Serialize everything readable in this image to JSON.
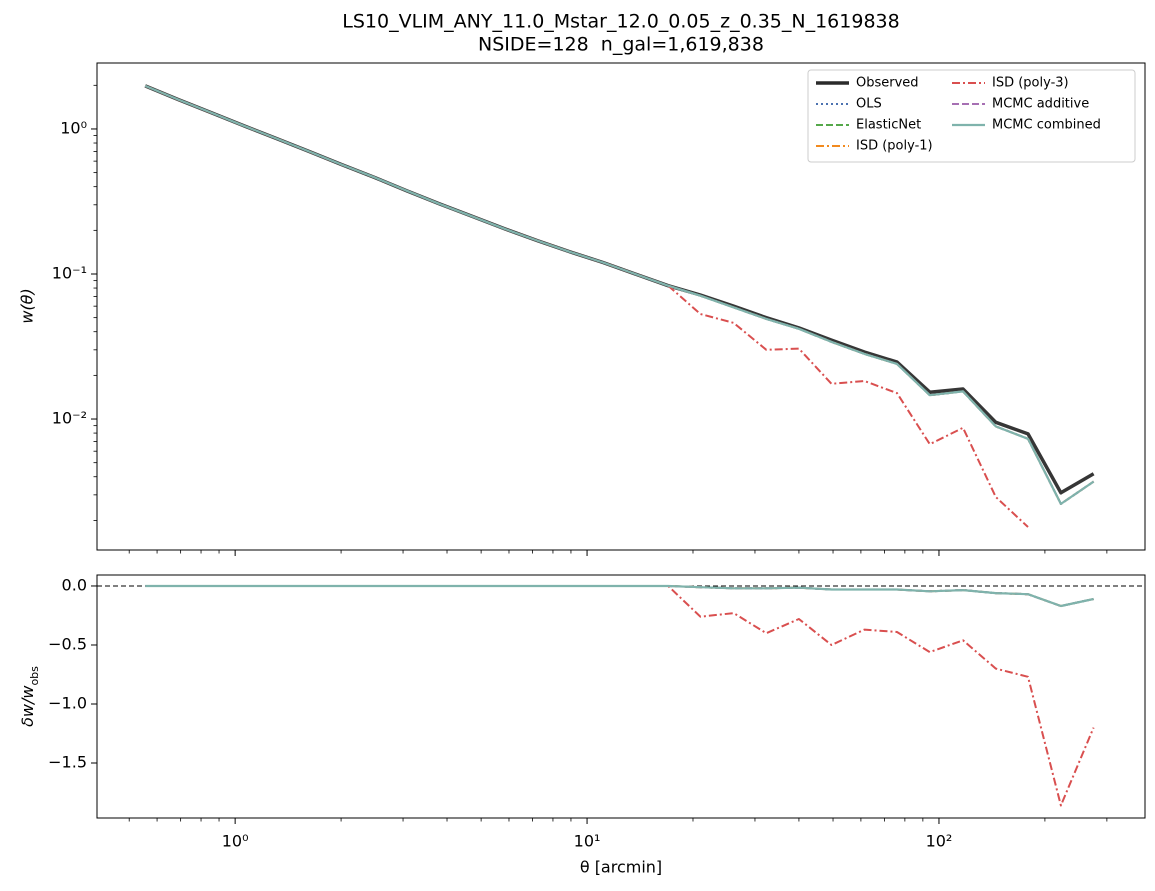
{
  "chart_data": [
    {
      "type": "line",
      "title": "LS10_VLIM_ANY_11.0_Mstar_12.0_0.05_z_0.35_N_1619838",
      "subtitle": "NSIDE=128  n_gal=1,619,838",
      "ylabel": "w(θ)",
      "log_x": true,
      "log_y": true,
      "xlim": [
        0.405,
        385
      ],
      "ylim": [
        0.00125,
        2.85
      ],
      "yticks": [
        {
          "value": 0.01,
          "label": "10⁻²"
        },
        {
          "value": 0.1,
          "label": "10⁻¹"
        },
        {
          "value": 1,
          "label": "10⁰"
        }
      ],
      "legend": "upper right",
      "legend_columns": 2,
      "x": [
        0.555,
        0.687,
        0.851,
        1.05,
        1.31,
        1.62,
        2.0,
        2.48,
        3.07,
        3.8,
        4.71,
        5.83,
        7.22,
        8.95,
        11.1,
        13.7,
        17.0,
        21.0,
        26.1,
        32.3,
        40.0,
        49.5,
        61.4,
        76.0,
        94.2,
        117,
        145,
        179,
        222,
        275
      ],
      "series": [
        {
          "name": "Observed",
          "color": "#2b2b2b",
          "linestyle": "-",
          "linewidth": 3.5,
          "values": [
            1.98,
            1.6,
            1.3,
            1.06,
            0.86,
            0.7,
            0.57,
            0.465,
            0.375,
            0.305,
            0.25,
            0.205,
            0.17,
            0.142,
            0.12,
            0.1,
            0.083,
            0.0716,
            0.06,
            0.05,
            0.0425,
            0.035,
            0.029,
            0.0247,
            0.0153,
            0.0161,
            0.0095,
            0.0079,
            0.0031,
            0.0042
          ]
        },
        {
          "name": "OLS",
          "color": "#4c72b0",
          "linestyle": ":",
          "linewidth": 2,
          "values": [
            1.98,
            1.6,
            1.3,
            1.06,
            0.86,
            0.7,
            0.57,
            0.465,
            0.375,
            0.305,
            0.25,
            0.205,
            0.17,
            0.142,
            0.12,
            0.1,
            0.083,
            0.0709,
            0.0588,
            0.049,
            0.0419,
            0.034,
            0.0281,
            0.024,
            0.0146,
            0.0155,
            0.0089,
            0.0073,
            0.0026,
            0.0037
          ]
        },
        {
          "name": "ElasticNet",
          "color": "#55a84a",
          "linestyle": "--",
          "linewidth": 2,
          "values": [
            1.98,
            1.6,
            1.3,
            1.06,
            0.86,
            0.7,
            0.57,
            0.465,
            0.375,
            0.305,
            0.25,
            0.205,
            0.17,
            0.142,
            0.12,
            0.1,
            0.083,
            0.0709,
            0.0588,
            0.049,
            0.0419,
            0.034,
            0.0281,
            0.024,
            0.0146,
            0.0155,
            0.0089,
            0.0073,
            0.0026,
            0.0037
          ]
        },
        {
          "name": "ISD (poly-1)",
          "color": "#f28a1e",
          "linestyle": "-.",
          "linewidth": 2,
          "values": [
            1.98,
            1.6,
            1.3,
            1.06,
            0.86,
            0.7,
            0.57,
            0.465,
            0.375,
            0.305,
            0.25,
            0.205,
            0.17,
            0.142,
            0.12,
            0.1,
            0.083,
            0.0709,
            0.0588,
            0.049,
            0.0419,
            0.034,
            0.0281,
            0.024,
            0.0146,
            0.0155,
            0.0089,
            0.0073,
            0.0026,
            0.0037
          ]
        },
        {
          "name": "ISD (poly-3)",
          "color": "#d94f4f",
          "linestyle": "-.",
          "linewidth": 2,
          "values": [
            1.98,
            1.6,
            1.3,
            1.06,
            0.86,
            0.7,
            0.57,
            0.465,
            0.375,
            0.305,
            0.25,
            0.205,
            0.17,
            0.142,
            0.12,
            0.1,
            0.083,
            0.053,
            0.046,
            0.03,
            0.0306,
            0.0175,
            0.0183,
            0.0151,
            0.0067,
            0.0087,
            0.0029,
            0.0018,
            null,
            null
          ]
        },
        {
          "name": "MCMC additive",
          "color": "#a66fb3",
          "linestyle": "--",
          "linewidth": 2,
          "values": [
            1.98,
            1.6,
            1.3,
            1.06,
            0.86,
            0.7,
            0.57,
            0.465,
            0.375,
            0.305,
            0.25,
            0.205,
            0.17,
            0.142,
            0.12,
            0.1,
            0.083,
            0.0709,
            0.0588,
            0.049,
            0.0419,
            0.034,
            0.0281,
            0.024,
            0.0146,
            0.0155,
            0.0089,
            0.0073,
            0.0026,
            0.0037
          ]
        },
        {
          "name": "MCMC combined",
          "color": "#7fb3ac",
          "linestyle": "-",
          "linewidth": 2.2,
          "values": [
            1.98,
            1.6,
            1.3,
            1.06,
            0.86,
            0.7,
            0.57,
            0.465,
            0.375,
            0.305,
            0.25,
            0.205,
            0.17,
            0.142,
            0.12,
            0.1,
            0.083,
            0.0709,
            0.0588,
            0.049,
            0.0419,
            0.034,
            0.0281,
            0.024,
            0.0146,
            0.0155,
            0.0089,
            0.0073,
            0.0026,
            0.0037
          ]
        }
      ]
    },
    {
      "type": "line",
      "xlabel": "θ [arcmin]",
      "ylabel": "δw/w",
      "ylabel_sub": "obs",
      "log_x": true,
      "xlim": [
        0.405,
        385
      ],
      "ylim": [
        -1.966,
        0.093
      ],
      "xticks": [
        {
          "value": 1,
          "label": "10⁰"
        },
        {
          "value": 10,
          "label": "10¹"
        },
        {
          "value": 100,
          "label": "10²"
        }
      ],
      "yticks": [
        {
          "value": 0,
          "label": "0.0"
        },
        {
          "value": -0.5,
          "label": "−0.5"
        },
        {
          "value": -1,
          "label": "−1.0"
        },
        {
          "value": -1.5,
          "label": "−1.5"
        }
      ],
      "reference_line": 0,
      "x": [
        0.555,
        0.687,
        0.851,
        1.05,
        1.31,
        1.62,
        2.0,
        2.48,
        3.07,
        3.8,
        4.71,
        5.83,
        7.22,
        8.95,
        11.1,
        13.7,
        17.0,
        21.0,
        26.1,
        32.3,
        40.0,
        49.5,
        61.4,
        76.0,
        94.2,
        117,
        145,
        179,
        222,
        275
      ],
      "series": [
        {
          "name": "OLS",
          "color": "#4c72b0",
          "linestyle": ":",
          "linewidth": 2,
          "values": [
            0,
            0,
            0,
            0,
            0,
            0,
            0,
            0,
            0,
            0,
            0,
            0,
            0,
            0,
            0,
            0,
            0,
            -0.01,
            -0.02,
            -0.02,
            -0.015,
            -0.03,
            -0.03,
            -0.03,
            -0.045,
            -0.035,
            -0.06,
            -0.07,
            -0.17,
            -0.11
          ]
        },
        {
          "name": "ElasticNet",
          "color": "#55a84a",
          "linestyle": "--",
          "linewidth": 2,
          "values": [
            0,
            0,
            0,
            0,
            0,
            0,
            0,
            0,
            0,
            0,
            0,
            0,
            0,
            0,
            0,
            0,
            0,
            -0.01,
            -0.02,
            -0.02,
            -0.015,
            -0.03,
            -0.03,
            -0.03,
            -0.045,
            -0.035,
            -0.06,
            -0.07,
            -0.17,
            -0.11
          ]
        },
        {
          "name": "ISD (poly-1)",
          "color": "#f28a1e",
          "linestyle": "-.",
          "linewidth": 2,
          "values": [
            0,
            0,
            0,
            0,
            0,
            0,
            0,
            0,
            0,
            0,
            0,
            0,
            0,
            0,
            0,
            0,
            0,
            -0.01,
            -0.02,
            -0.02,
            -0.015,
            -0.03,
            -0.03,
            -0.03,
            -0.045,
            -0.035,
            -0.06,
            -0.07,
            -0.17,
            -0.11
          ]
        },
        {
          "name": "ISD (poly-3)",
          "color": "#d94f4f",
          "linestyle": "-.",
          "linewidth": 2,
          "values": [
            0,
            0,
            0,
            0,
            0,
            0,
            0,
            0,
            0,
            0,
            0,
            0,
            0,
            0,
            0,
            0,
            0,
            -0.26,
            -0.23,
            -0.4,
            -0.28,
            -0.5,
            -0.37,
            -0.39,
            -0.56,
            -0.46,
            -0.7,
            -0.77,
            -1.86,
            -1.2
          ]
        },
        {
          "name": "MCMC additive",
          "color": "#a66fb3",
          "linestyle": "--",
          "linewidth": 2,
          "values": [
            0,
            0,
            0,
            0,
            0,
            0,
            0,
            0,
            0,
            0,
            0,
            0,
            0,
            0,
            0,
            0,
            0,
            -0.01,
            -0.02,
            -0.02,
            -0.015,
            -0.03,
            -0.03,
            -0.03,
            -0.045,
            -0.035,
            -0.06,
            -0.07,
            -0.17,
            -0.11
          ]
        },
        {
          "name": "MCMC combined",
          "color": "#7fb3ac",
          "linestyle": "-",
          "linewidth": 2.2,
          "values": [
            0,
            0,
            0,
            0,
            0,
            0,
            0,
            0,
            0,
            0,
            0,
            0,
            0,
            0,
            0,
            0,
            0,
            -0.01,
            -0.02,
            -0.02,
            -0.015,
            -0.03,
            -0.03,
            -0.03,
            -0.045,
            -0.035,
            -0.06,
            -0.07,
            -0.17,
            -0.11
          ]
        }
      ]
    }
  ]
}
